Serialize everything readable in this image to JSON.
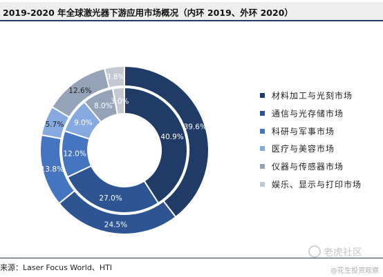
{
  "title": "2019-2020 年全球激光器下游应用市场概况（内环 2019、外环 2020）",
  "source": "来源：Laser Focus World、HTI",
  "watermark": {
    "main": "老虎社区",
    "sub": "@花生投资观察"
  },
  "chart_data": {
    "type": "donut",
    "categories": [
      "材料加工与光刻市场",
      "通信与光存储市场",
      "科研与军事市场",
      "医疗与美容市场",
      "仪器与传感器市场",
      "娱乐、显示与打印市场"
    ],
    "colors": [
      "#1f3b66",
      "#2e5592",
      "#4575c0",
      "#86a9df",
      "#95a3b8",
      "#c3c8d2"
    ],
    "series": [
      {
        "name": "2019",
        "values": [
          40.9,
          27.0,
          12.0,
          9.0,
          8.0,
          3.0
        ],
        "labels": [
          "40.9%",
          "27.0%",
          "12.0%",
          "9.0%",
          "8.0%",
          "3.0%"
        ]
      },
      {
        "name": "2020",
        "values": [
          39.6,
          24.5,
          13.8,
          5.7,
          12.6,
          3.8
        ],
        "labels": [
          "39.6%",
          "24.5%",
          "13.8%",
          "5.7%",
          "12.6%",
          "3.8%"
        ]
      }
    ]
  }
}
